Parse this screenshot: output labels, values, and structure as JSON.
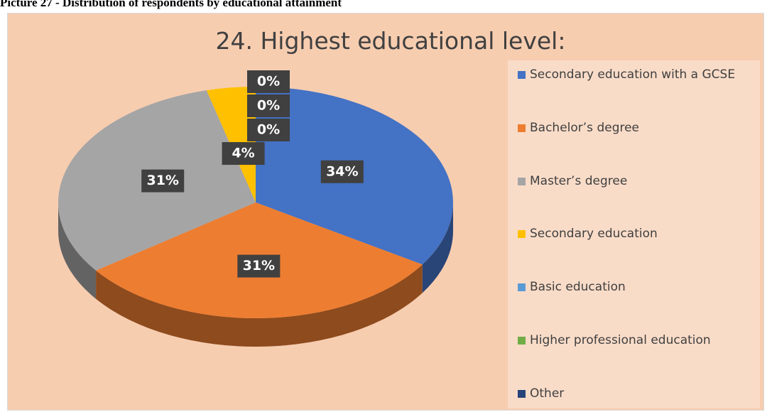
{
  "caption": "Picture 27 - Distribution of respondents by educational attainment",
  "chart_data": {
    "type": "pie",
    "title": "24. Highest educational level:",
    "categories": [
      "Secondary education with a GCSE",
      "Bachelor’s degree",
      "Master’s degree",
      "Secondary education",
      "Basic education",
      "Higher professional education",
      "Other"
    ],
    "values": [
      34,
      31,
      31,
      4,
      0,
      0,
      0
    ],
    "value_labels": [
      "34%",
      "31%",
      "31%",
      "4%",
      "0%",
      "0%",
      "0%"
    ],
    "colors": [
      "#4472c4",
      "#ed7d31",
      "#a5a5a5",
      "#ffc000",
      "#5b9bd5",
      "#70ad47",
      "#264478"
    ],
    "legend": "right"
  }
}
